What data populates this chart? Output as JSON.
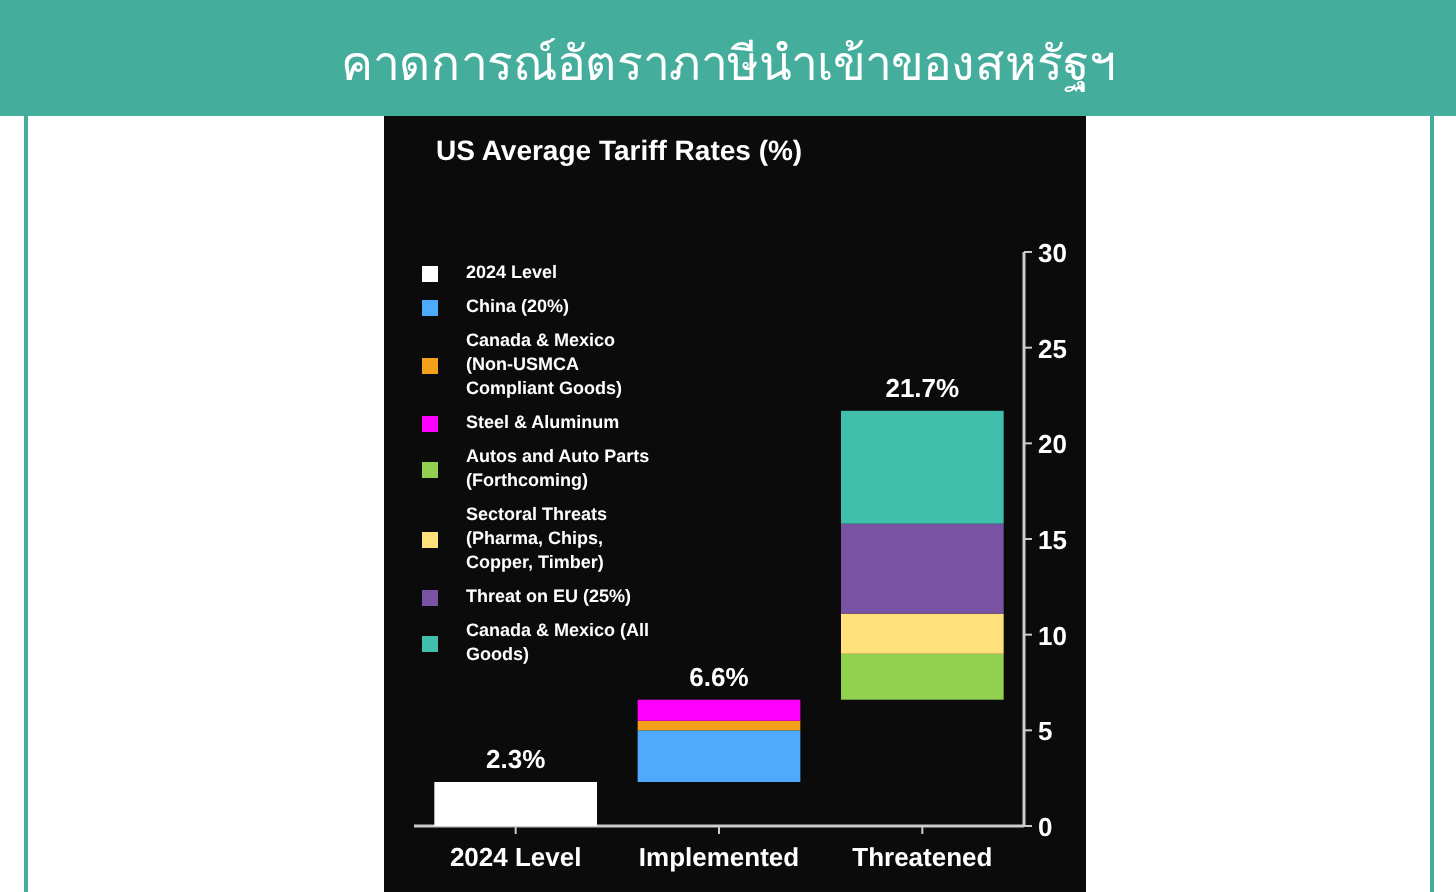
{
  "chart_data": {
    "type": "bar",
    "title": "คาดการณ์อัตราภาษีนำเข้าของสหรัฐฯ",
    "subtitle": "US Average Tariff Rates (%)",
    "categories": [
      "2024 Level",
      "Implemented",
      "Threatened"
    ],
    "series": [
      {
        "name": "2024 Level",
        "color": "#ffffff",
        "values": [
          2.3,
          null,
          null
        ],
        "base": [
          0,
          null,
          null
        ]
      },
      {
        "name": "China (20%)",
        "color": "#4daafc",
        "values": [
          null,
          2.7,
          null
        ],
        "base": [
          null,
          2.3,
          null
        ]
      },
      {
        "name": "Canada & Mexico (Non-USMCA Compliant Goods)",
        "color": "#f5a01a",
        "values": [
          null,
          0.5,
          null
        ],
        "base": [
          null,
          5.0,
          null
        ]
      },
      {
        "name": "Steel & Aluminum",
        "color": "#ff00ff",
        "values": [
          null,
          1.1,
          null
        ],
        "base": [
          null,
          5.5,
          null
        ]
      },
      {
        "name": "Autos and Auto Parts (Forthcoming)",
        "color": "#92d050",
        "values": [
          null,
          null,
          2.4
        ],
        "base": [
          null,
          null,
          6.6
        ]
      },
      {
        "name": "Sectoral Threats (Pharma, Chips, Copper, Timber)",
        "color": "#ffe07a",
        "values": [
          null,
          null,
          2.1
        ],
        "base": [
          null,
          null,
          9.0
        ]
      },
      {
        "name": "Threat on EU (25%)",
        "color": "#7a52a3",
        "values": [
          null,
          null,
          4.7
        ],
        "base": [
          null,
          null,
          11.1
        ]
      },
      {
        "name": "Canada & Mexico (All Goods)",
        "color": "#40bfad",
        "values": [
          null,
          null,
          5.9
        ],
        "base": [
          null,
          null,
          15.8
        ]
      }
    ],
    "annotations": [
      {
        "text": "2.3%",
        "x": "2024 Level",
        "y": 2.3
      },
      {
        "text": "6.6%",
        "x": "Implemented",
        "y": 6.6
      },
      {
        "text": "21.7%",
        "x": "Threatened",
        "y": 21.7
      }
    ],
    "ylim": [
      0,
      30
    ],
    "yticks": [
      0,
      5,
      10,
      15,
      20,
      25,
      30
    ],
    "legend": "top left"
  }
}
